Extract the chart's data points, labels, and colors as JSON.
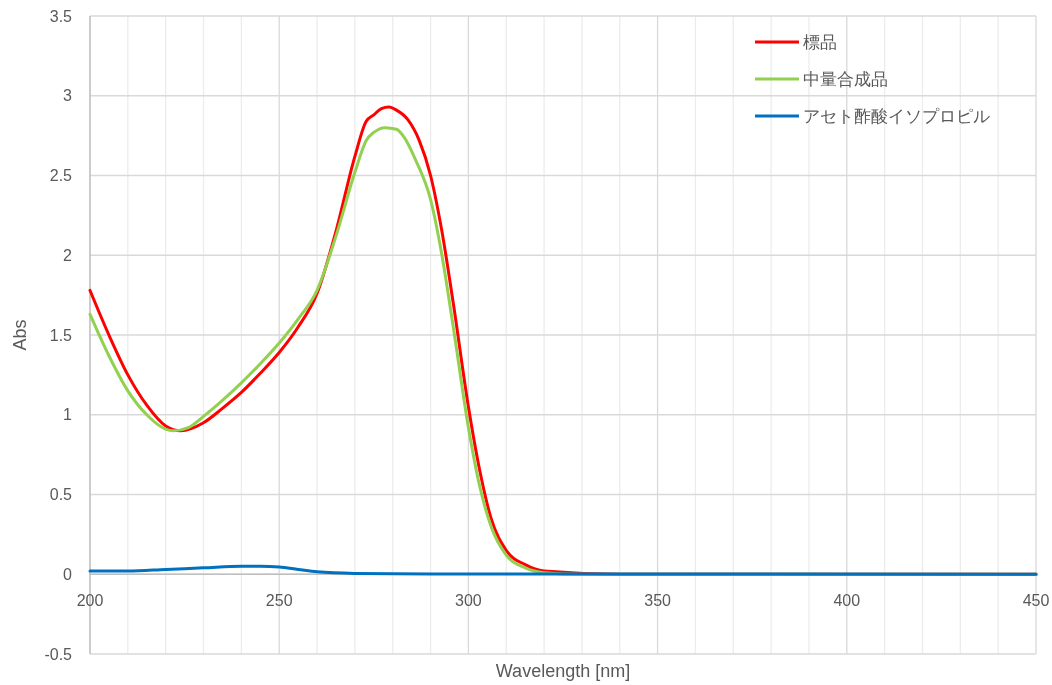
{
  "chart_data": {
    "type": "line",
    "xlabel": "Wavelength [nm]",
    "ylabel": "Abs",
    "xlim": [
      200,
      450
    ],
    "ylim": [
      -0.5,
      3.5
    ],
    "xticks": [
      200,
      {
        "value": 210,
        "label": null
      },
      {
        "value": 220,
        "label": null
      },
      {
        "value": 230,
        "label": null
      },
      {
        "value": 240,
        "label": null
      },
      250,
      {
        "value": 260,
        "label": null
      },
      {
        "value": 270,
        "label": null
      },
      {
        "value": 280,
        "label": null
      },
      {
        "value": 290,
        "label": null
      },
      300,
      {
        "value": 310,
        "label": null
      },
      {
        "value": 320,
        "label": null
      },
      {
        "value": 330,
        "label": null
      },
      {
        "value": 340,
        "label": null
      },
      350,
      {
        "value": 360,
        "label": null
      },
      {
        "value": 370,
        "label": null
      },
      {
        "value": 380,
        "label": null
      },
      {
        "value": 390,
        "label": null
      },
      400,
      {
        "value": 410,
        "label": null
      },
      {
        "value": 420,
        "label": null
      },
      {
        "value": 430,
        "label": null
      },
      {
        "value": 440,
        "label": null
      },
      450
    ],
    "yticks": [
      -0.5,
      0,
      0.5,
      1,
      1.5,
      2,
      2.5,
      3,
      3.5
    ],
    "grid": true,
    "legend": "top right",
    "marker": "none",
    "line_style": "solid",
    "series": [
      {
        "name": "標品",
        "color": "#ff0000",
        "x": [
          200,
          205,
          210,
          215,
          220,
          224,
          230,
          235,
          240,
          245,
          250,
          255,
          260,
          265,
          270,
          273,
          275,
          277,
          279,
          281,
          284,
          287,
          290,
          293,
          296,
          300,
          303,
          306,
          310,
          315,
          320,
          330,
          340,
          450
        ],
        "values": [
          1.78,
          1.5,
          1.25,
          1.06,
          0.93,
          0.9,
          0.95,
          1.04,
          1.14,
          1.26,
          1.39,
          1.55,
          1.76,
          2.15,
          2.62,
          2.84,
          2.88,
          2.92,
          2.93,
          2.91,
          2.85,
          2.72,
          2.5,
          2.15,
          1.7,
          1.05,
          0.65,
          0.35,
          0.15,
          0.06,
          0.02,
          null,
          0,
          0
        ]
      },
      {
        "name": "中量合成品",
        "color": "#92d050",
        "x": [
          200,
          205,
          210,
          215,
          220,
          222,
          226,
          230,
          235,
          240,
          245,
          250,
          255,
          260,
          265,
          270,
          273,
          275,
          278,
          281,
          283,
          286,
          290,
          293,
          296,
          300,
          303,
          306,
          310,
          315,
          320,
          330,
          450
        ],
        "values": [
          1.63,
          1.37,
          1.15,
          1.0,
          0.91,
          0.9,
          0.92,
          0.99,
          1.09,
          1.2,
          1.32,
          1.45,
          1.6,
          1.78,
          2.12,
          2.52,
          2.72,
          2.77,
          2.8,
          2.79,
          2.74,
          2.6,
          2.35,
          2.0,
          1.55,
          0.92,
          0.55,
          0.3,
          0.12,
          0.04,
          0.01,
          0,
          0
        ]
      },
      {
        "name": "アセト酢酸イソプロピル",
        "color": "#0070c0",
        "x": [
          200,
          210,
          220,
          230,
          240,
          245,
          250,
          255,
          260,
          270,
          280,
          300,
          450
        ],
        "values": [
          0.02,
          0.02,
          0.03,
          0.04,
          0.05,
          0.05,
          0.045,
          0.03,
          0.015,
          0.005,
          0.003,
          0.002,
          0
        ]
      }
    ]
  }
}
